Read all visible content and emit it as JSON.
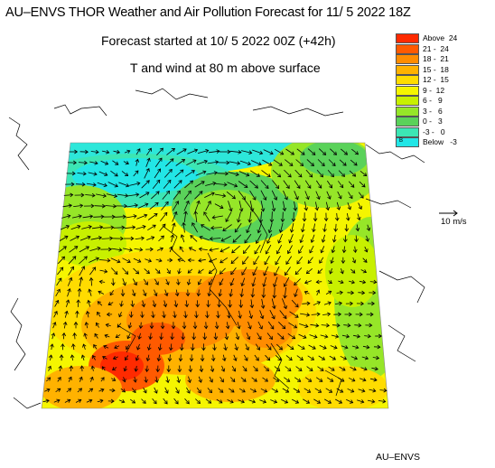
{
  "header": {
    "title": "AU–ENVS THOR Weather and Air Pollution Forecast for 11/ 5 2022  18Z",
    "forecast_start": "Forecast started at 10/ 5 2022  00Z (+42h)",
    "variable": "T and wind at 80 m above surface"
  },
  "legend": {
    "items": [
      {
        "label": "Above  24",
        "color": "#ff2a00"
      },
      {
        "label": "21 -  24",
        "color": "#ff5a00"
      },
      {
        "label": "18 -  21",
        "color": "#ff8c00"
      },
      {
        "label": "15 -  18",
        "color": "#ffb200"
      },
      {
        "label": "12 -  15",
        "color": "#ffdc00"
      },
      {
        "label": "9 -  12",
        "color": "#f5f500"
      },
      {
        "label": "6 -   9",
        "color": "#c8f000"
      },
      {
        "label": "3 -   6",
        "color": "#96e628"
      },
      {
        "label": "0 -   3",
        "color": "#5ad25a"
      },
      {
        "label": "-3 -   0",
        "color": "#3ce6b4"
      },
      {
        "label": "Below   -3",
        "color": "#22e6e6",
        "symbol": "B"
      }
    ]
  },
  "wind_reference": {
    "label": "10 m/s"
  },
  "footer": {
    "label": "AU–ENVS"
  }
}
